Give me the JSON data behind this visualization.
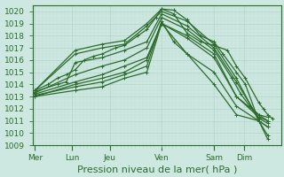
{
  "bg_color": "#cce8e0",
  "plot_bg_color": "#cce8e0",
  "grid_major_color": "#b0d4c8",
  "grid_minor_color": "#c0dcd4",
  "line_color": "#2d6b2d",
  "ylim": [
    1009,
    1020.5
  ],
  "yticks": [
    1009,
    1010,
    1011,
    1012,
    1013,
    1014,
    1015,
    1016,
    1017,
    1018,
    1019,
    1020
  ],
  "xlabel": "Pression niveau de la mer( hPa )",
  "xlabel_fontsize": 8,
  "day_labels": [
    "Mer",
    "Lun",
    "Jeu",
    "Ven",
    "Sam",
    "Dim"
  ],
  "day_positions": [
    0.0,
    0.83,
    1.67,
    2.83,
    4.0,
    4.67
  ],
  "xlim": [
    -0.05,
    5.5
  ],
  "lines": [
    [
      0.0,
      1013.5,
      0.9,
      1016.8,
      1.5,
      1017.3,
      2.0,
      1017.6,
      2.5,
      1019.0,
      2.83,
      1020.2,
      3.1,
      1020.1,
      3.4,
      1019.3,
      3.7,
      1018.0,
      4.0,
      1017.5,
      4.2,
      1016.5,
      4.5,
      1015.0,
      4.7,
      1014.0,
      5.0,
      1011.0,
      5.2,
      1009.5
    ],
    [
      0.0,
      1013.5,
      0.9,
      1016.5,
      1.5,
      1017.0,
      2.0,
      1017.3,
      2.5,
      1018.8,
      2.83,
      1020.0,
      3.4,
      1019.2,
      4.0,
      1017.3,
      4.5,
      1014.5,
      5.0,
      1011.0,
      5.2,
      1009.8
    ],
    [
      0.0,
      1013.4,
      0.5,
      1014.0,
      0.7,
      1014.2,
      0.9,
      1015.8,
      1.5,
      1016.2,
      2.0,
      1016.8,
      2.5,
      1017.5,
      2.83,
      1019.8,
      3.4,
      1018.8,
      4.0,
      1017.0,
      4.5,
      1014.2,
      5.0,
      1011.2,
      5.2,
      1010.8
    ],
    [
      0.0,
      1013.3,
      0.9,
      1014.8,
      1.5,
      1015.5,
      2.0,
      1016.0,
      2.5,
      1017.0,
      2.83,
      1019.5,
      3.4,
      1018.5,
      4.0,
      1016.8,
      4.4,
      1014.5,
      4.6,
      1013.2,
      4.8,
      1012.2,
      5.0,
      1011.5,
      5.2,
      1011.0
    ],
    [
      0.0,
      1013.2,
      0.9,
      1014.2,
      1.5,
      1014.8,
      2.0,
      1015.5,
      2.5,
      1016.2,
      2.83,
      1019.0,
      3.4,
      1018.0,
      4.0,
      1016.5,
      4.5,
      1013.0,
      5.0,
      1011.3,
      5.2,
      1011.0
    ],
    [
      0.0,
      1013.0,
      0.9,
      1014.0,
      1.5,
      1014.5,
      2.0,
      1015.0,
      2.5,
      1016.0,
      2.83,
      1019.0,
      3.4,
      1017.8,
      4.0,
      1016.2,
      4.5,
      1013.0,
      5.0,
      1011.5,
      5.2,
      1011.3
    ],
    [
      0.0,
      1013.1,
      0.9,
      1013.8,
      1.5,
      1014.2,
      2.0,
      1014.8,
      2.5,
      1015.5,
      2.83,
      1019.2,
      3.1,
      1017.5,
      3.4,
      1016.5,
      4.0,
      1015.0,
      4.5,
      1012.2,
      5.0,
      1011.0,
      5.2,
      1010.5
    ],
    [
      0.0,
      1013.0,
      0.9,
      1013.5,
      1.5,
      1013.8,
      2.0,
      1014.5,
      2.5,
      1015.0,
      2.83,
      1019.0,
      3.4,
      1016.5,
      4.0,
      1014.0,
      4.5,
      1011.5,
      5.0,
      1011.0,
      5.2,
      1010.5
    ],
    [
      0.0,
      1013.5,
      0.3,
      1014.0,
      0.5,
      1014.5,
      0.7,
      1014.8,
      0.9,
      1015.2,
      1.1,
      1016.0,
      1.3,
      1016.3,
      1.5,
      1016.5,
      1.8,
      1017.0,
      2.0,
      1017.2,
      2.3,
      1018.0,
      2.5,
      1018.5,
      2.7,
      1019.5,
      2.83,
      1020.2,
      3.1,
      1019.8,
      3.4,
      1018.2,
      3.7,
      1017.5,
      4.0,
      1017.2,
      4.3,
      1016.8,
      4.5,
      1015.5,
      4.7,
      1014.5,
      5.0,
      1012.5,
      5.1,
      1012.0,
      5.2,
      1011.5,
      5.3,
      1011.2
    ]
  ]
}
